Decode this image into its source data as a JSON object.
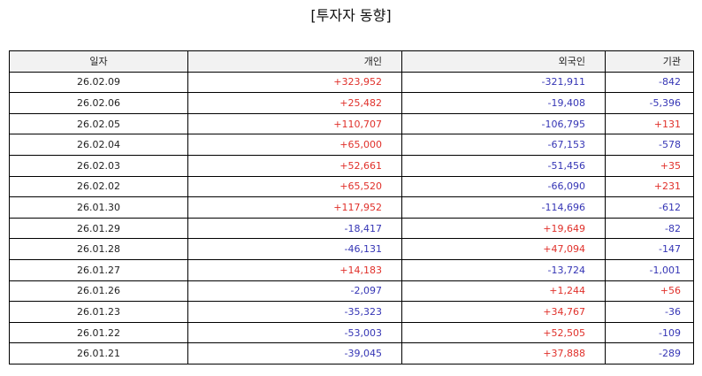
{
  "page": {
    "title": "[투자자 동향]"
  },
  "table": {
    "headers": {
      "date": "일자",
      "individual": "개인",
      "foreign": "외국인",
      "institution": "기관"
    },
    "rows": [
      {
        "date": "26.02.09",
        "individual": "+323,952",
        "foreign": "-321,911",
        "institution": "-842"
      },
      {
        "date": "26.02.06",
        "individual": "+25,482",
        "foreign": "-19,408",
        "institution": "-5,396"
      },
      {
        "date": "26.02.05",
        "individual": "+110,707",
        "foreign": "-106,795",
        "institution": "+131"
      },
      {
        "date": "26.02.04",
        "individual": "+65,000",
        "foreign": "-67,153",
        "institution": "-578"
      },
      {
        "date": "26.02.03",
        "individual": "+52,661",
        "foreign": "-51,456",
        "institution": "+35"
      },
      {
        "date": "26.02.02",
        "individual": "+65,520",
        "foreign": "-66,090",
        "institution": "+231"
      },
      {
        "date": "26.01.30",
        "individual": "+117,952",
        "foreign": "-114,696",
        "institution": "-612"
      },
      {
        "date": "26.01.29",
        "individual": "-18,417",
        "foreign": "+19,649",
        "institution": "-82"
      },
      {
        "date": "26.01.28",
        "individual": "-46,131",
        "foreign": "+47,094",
        "institution": "-147"
      },
      {
        "date": "26.01.27",
        "individual": "+14,183",
        "foreign": "-13,724",
        "institution": "-1,001"
      },
      {
        "date": "26.01.26",
        "individual": "-2,097",
        "foreign": "+1,244",
        "institution": "+56"
      },
      {
        "date": "26.01.23",
        "individual": "-35,323",
        "foreign": "+34,767",
        "institution": "-36"
      },
      {
        "date": "26.01.22",
        "individual": "-53,003",
        "foreign": "+52,505",
        "institution": "-109"
      },
      {
        "date": "26.01.21",
        "individual": "-39,045",
        "foreign": "+37,888",
        "institution": "-289"
      }
    ]
  },
  "colors": {
    "positive": "#e0302a",
    "negative": "#3535b5",
    "header_background": "#f2f2f2",
    "border": "#000000"
  }
}
